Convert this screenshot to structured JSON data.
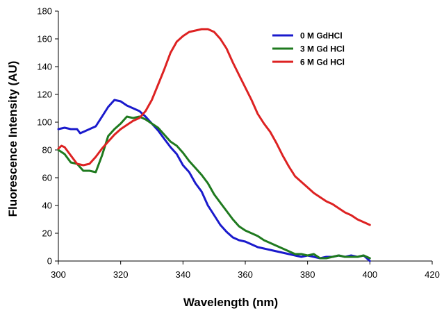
{
  "chart_data": {
    "type": "line",
    "title": "",
    "xlabel": "Wavelength (nm)",
    "ylabel": "Fluorescence Intensity (AU)",
    "xlim": [
      300,
      420
    ],
    "ylim": [
      0,
      180
    ],
    "xticks": [
      300,
      320,
      340,
      360,
      380,
      400,
      420
    ],
    "yticks": [
      0,
      20,
      40,
      60,
      80,
      100,
      120,
      140,
      160,
      180
    ],
    "grid": false,
    "legend_position": "top-right",
    "series": [
      {
        "name": "0 M GdHCl",
        "color": "#1a1acc",
        "x": [
          300,
          302,
          304,
          306,
          307,
          308,
          310,
          312,
          314,
          316,
          318,
          320,
          322,
          324,
          326,
          328,
          330,
          332,
          334,
          336,
          338,
          340,
          342,
          344,
          346,
          348,
          350,
          352,
          354,
          356,
          358,
          360,
          362,
          364,
          366,
          368,
          370,
          372,
          374,
          376,
          378,
          380,
          382,
          384,
          386,
          388,
          390,
          392,
          394,
          396,
          398,
          400
        ],
        "values": [
          95,
          96,
          95,
          95,
          92,
          93,
          95,
          97,
          104,
          111,
          116,
          115,
          112,
          110,
          108,
          104,
          99,
          94,
          88,
          82,
          77,
          69,
          64,
          56,
          50,
          40,
          33,
          26,
          21,
          17,
          15,
          14,
          12,
          10,
          9,
          8,
          7,
          6,
          5,
          4,
          3,
          4,
          3,
          2,
          3,
          3,
          4,
          3,
          4,
          3,
          4,
          0
        ]
      },
      {
        "name": "3 M Gd HCl",
        "color": "#1f7a1f",
        "x": [
          300,
          302,
          304,
          306,
          308,
          310,
          312,
          314,
          316,
          318,
          320,
          322,
          324,
          326,
          328,
          330,
          332,
          334,
          336,
          338,
          340,
          342,
          344,
          346,
          348,
          350,
          352,
          354,
          356,
          358,
          360,
          362,
          364,
          366,
          368,
          370,
          372,
          374,
          376,
          378,
          380,
          382,
          384,
          386,
          388,
          390,
          392,
          394,
          396,
          398,
          400
        ],
        "values": [
          80,
          77,
          71,
          70,
          65,
          65,
          64,
          76,
          90,
          95,
          99,
          104,
          103,
          104,
          102,
          99,
          96,
          91,
          86,
          83,
          78,
          72,
          67,
          62,
          56,
          48,
          42,
          36,
          30,
          25,
          22,
          20,
          18,
          15,
          13,
          11,
          9,
          7,
          5,
          5,
          4,
          5,
          2,
          2,
          3,
          4,
          3,
          3,
          3,
          4,
          2
        ]
      },
      {
        "name": "6 M Gd HCl",
        "color": "#dd2222",
        "x": [
          300,
          301,
          302,
          304,
          306,
          308,
          310,
          312,
          314,
          316,
          318,
          320,
          322,
          324,
          326,
          328,
          330,
          332,
          334,
          336,
          338,
          340,
          342,
          344,
          346,
          348,
          350,
          352,
          354,
          356,
          358,
          360,
          362,
          364,
          366,
          368,
          370,
          372,
          374,
          376,
          378,
          380,
          382,
          384,
          386,
          388,
          390,
          392,
          394,
          396,
          398,
          400
        ],
        "values": [
          81,
          83,
          82,
          76,
          70,
          69,
          70,
          75,
          81,
          86,
          91,
          95,
          98,
          101,
          103,
          108,
          116,
          127,
          138,
          150,
          158,
          162,
          165,
          166,
          167,
          167,
          165,
          160,
          153,
          143,
          134,
          125,
          116,
          106,
          99,
          93,
          85,
          76,
          68,
          61,
          57,
          53,
          49,
          46,
          43,
          41,
          38,
          35,
          33,
          30,
          28,
          26
        ]
      }
    ]
  }
}
